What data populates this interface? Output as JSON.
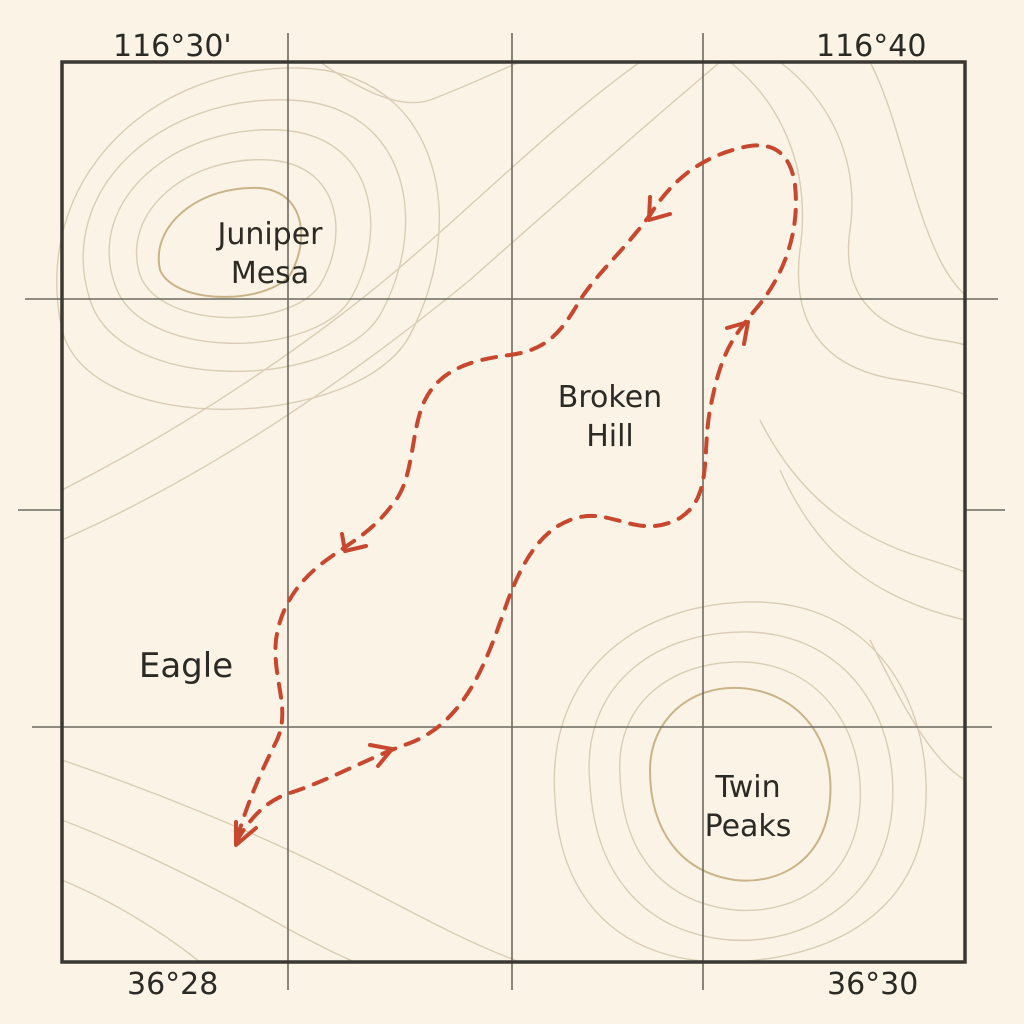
{
  "coordinates": {
    "top_left": "116°30'",
    "top_right": "116°40",
    "bottom_left": "36°28",
    "bottom_right": "36°30"
  },
  "places": {
    "juniper_mesa": "Juniper\nMesa",
    "broken_hill": "Broken\nHill",
    "eagle": "Eagle",
    "twin_peaks": "Twin\nPeaks"
  },
  "style": {
    "paper": "#fbf3e6",
    "frame": "#3a3832",
    "grid": "#6e6a60",
    "contour": "#d9cdb4",
    "contour_strong": "#c9b48a",
    "route": "#c8472f"
  },
  "route": {
    "style": "dashed",
    "direction": "counterclockwise loop"
  }
}
